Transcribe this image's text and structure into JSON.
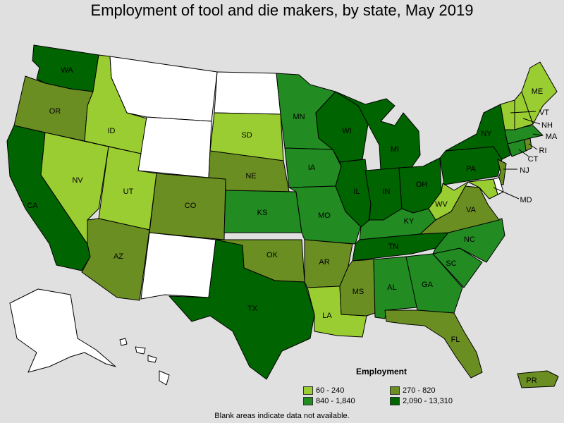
{
  "title": "Employment of tool and die makers, by state, May 2019",
  "footnote": "Blank areas indicate data not available.",
  "legend": {
    "title": "Employment",
    "bins": [
      {
        "label": "60 - 240",
        "color": "#9acd32"
      },
      {
        "label": "270 - 820",
        "color": "#6b8e23"
      },
      {
        "label": "840 - 1,840",
        "color": "#228b22"
      },
      {
        "label": "2,090 - 13,310",
        "color": "#006400"
      }
    ],
    "nodata_color": "#ffffff"
  },
  "states": {
    "WA": 3,
    "OR": 1,
    "CA": 3,
    "NV": 0,
    "ID": 0,
    "UT": 0,
    "AZ": 1,
    "MT": -1,
    "WY": -1,
    "CO": 1,
    "NM": -1,
    "ND": -1,
    "SD": 0,
    "NE": 1,
    "KS": 2,
    "OK": 1,
    "TX": 3,
    "MN": 2,
    "IA": 2,
    "MO": 2,
    "AR": 1,
    "LA": 0,
    "WI": 3,
    "IL": 3,
    "MS": 1,
    "MI": 3,
    "IN": 3,
    "OH": 3,
    "KY": 2,
    "TN": 3,
    "AL": 2,
    "GA": 2,
    "FL": 1,
    "SC": 2,
    "NC": 2,
    "VA": 1,
    "WV": 0,
    "PA": 3,
    "NY": 3,
    "ME": 0,
    "VT": 0,
    "NH": 0,
    "MA": 2,
    "RI": 1,
    "CT": 2,
    "NJ": 1,
    "MD": 0,
    "DE": -1,
    "AK": -1,
    "HI": -1,
    "PR": 1
  }
}
